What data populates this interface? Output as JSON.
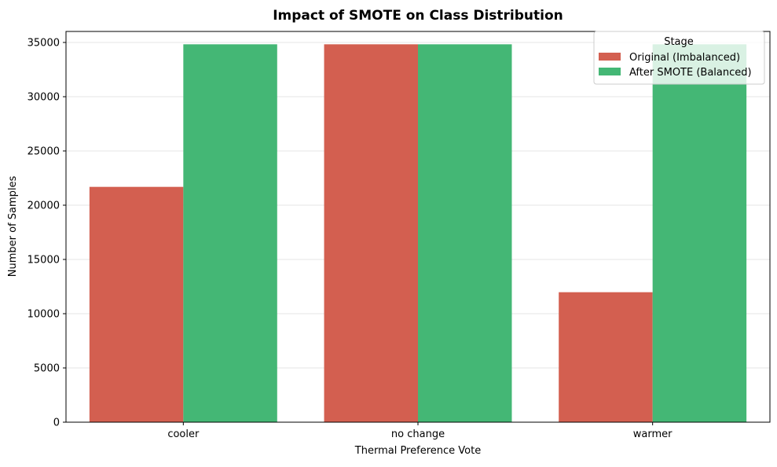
{
  "chart_data": {
    "type": "bar",
    "title": "Impact of SMOTE on Class Distribution",
    "xlabel": "Thermal Preference Vote",
    "ylabel": "Number of Samples",
    "categories": [
      "cooler",
      "no change",
      "warmer"
    ],
    "series": [
      {
        "name": "Original (Imbalanced)",
        "color": "#d35f50",
        "values": [
          21690,
          34830,
          11980
        ]
      },
      {
        "name": "After SMOTE (Balanced)",
        "color": "#44b775",
        "values": [
          34830,
          34830,
          34830
        ]
      }
    ],
    "ylim": [
      0,
      36500
    ],
    "yticks": [
      "0",
      "5000",
      "10000",
      "15000",
      "20000",
      "25000",
      "30000",
      "35000"
    ],
    "grid": "horizontal",
    "legend": {
      "title": "Stage",
      "placement": "top-right"
    }
  }
}
